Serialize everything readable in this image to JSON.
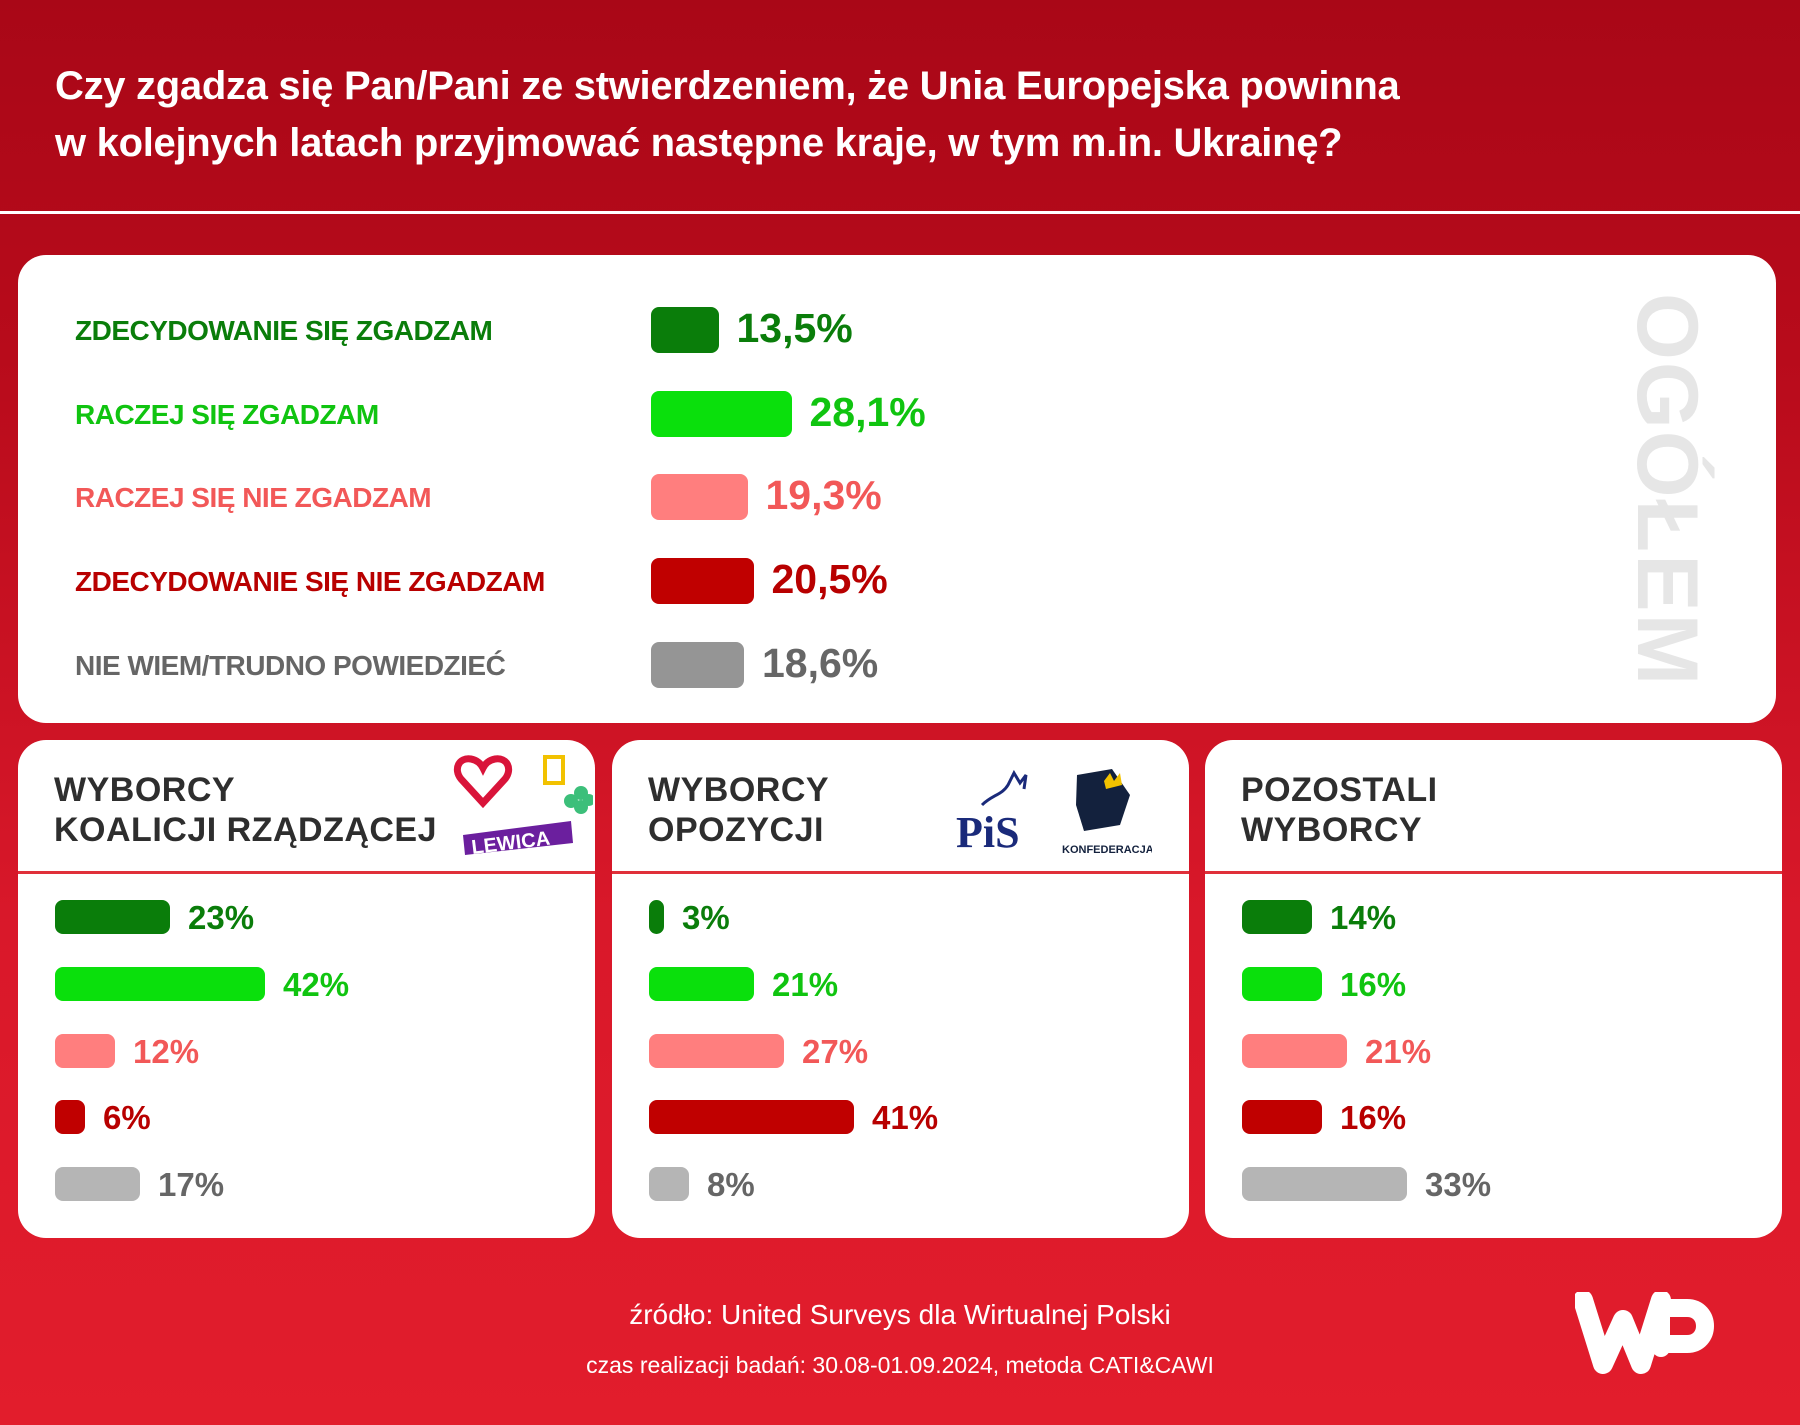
{
  "header": {
    "title_line1": "Czy zgadza się Pan/Pani ze stwierdzeniem, że Unia Europejska powinna",
    "title_line2": "w kolejnych latach przyjmować następne kraje, w tym m.in. Ukrainę?"
  },
  "chart_data": [
    {
      "type": "bar",
      "orientation": "horizontal",
      "title": "OGÓŁEM",
      "categories": [
        "ZDECYDOWANIE SIĘ ZGADZAM",
        "RACZEJ SIĘ ZGADZAM",
        "RACZEJ SIĘ NIE ZGADZAM",
        "ZDECYDOWANIE SIĘ NIE ZGADZAM",
        "NIE WIEM/TRUDNO POWIEDZIEĆ"
      ],
      "values": [
        13.5,
        28.1,
        19.3,
        20.5,
        18.6
      ],
      "labels": [
        "13,5%",
        "28,1%",
        "19,3%",
        "20,5%",
        "18,6%"
      ],
      "colors": [
        "#0a7d0a",
        "#0ae00c",
        "#ff7e7e",
        "#c00000",
        "#959595"
      ],
      "text_colors": [
        "#0a7d0a",
        "#10c410",
        "#f25858",
        "#b80000",
        "#666666"
      ]
    },
    {
      "type": "bar",
      "orientation": "horizontal",
      "title_line1": "WYBORCY",
      "title_line2": "KOALICJI RZĄDZĄCEJ",
      "logo_text": "LEWICA",
      "values": [
        23,
        42,
        12,
        6,
        17
      ],
      "labels": [
        "23%",
        "42%",
        "12%",
        "6%",
        "17%"
      ]
    },
    {
      "type": "bar",
      "orientation": "horizontal",
      "title_line1": "WYBORCY",
      "title_line2": "OPOZYCJI",
      "logo_text": "PiS",
      "logo_text2": "KONFEDERACJA",
      "values": [
        3,
        21,
        27,
        41,
        8
      ],
      "labels": [
        "3%",
        "21%",
        "27%",
        "41%",
        "8%"
      ]
    },
    {
      "type": "bar",
      "orientation": "horizontal",
      "title_line1": "POZOSTALI",
      "title_line2": "WYBORCY",
      "values": [
        14,
        16,
        21,
        16,
        33
      ],
      "labels": [
        "14%",
        "16%",
        "21%",
        "16%",
        "33%"
      ]
    }
  ],
  "sub_colors": [
    "#0a7d0a",
    "#0ae00c",
    "#ff7e7e",
    "#c00000",
    "#b5b5b5"
  ],
  "footer": {
    "source": "źródło: United Surveys dla Wirtualnej Polski",
    "method": "czas realizacji badań: 30.08-01.09.2024, metoda CATI&CAWI"
  }
}
